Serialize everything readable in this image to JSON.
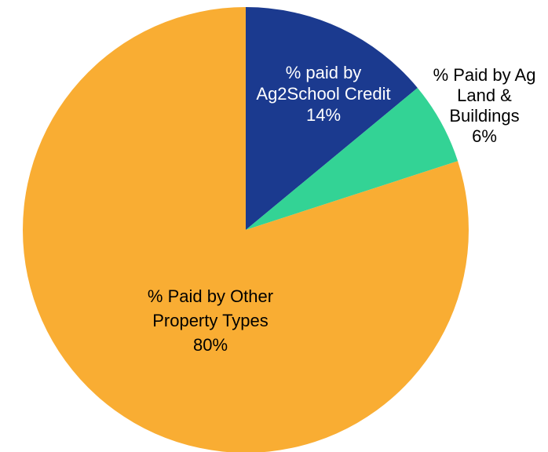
{
  "chart_data": {
    "type": "pie",
    "title": "",
    "slices": [
      {
        "label_lines": [
          "% paid by",
          "Ag2School Credit"
        ],
        "value": 14,
        "value_label": "14%",
        "color": "#1b3a8f",
        "label_color": "#ffffff"
      },
      {
        "label_lines": [
          "% Paid by Ag",
          "Land &",
          "Buildings"
        ],
        "value": 6,
        "value_label": "6%",
        "color": "#33d395",
        "label_color": "#000000"
      },
      {
        "label_lines": [
          "% Paid by Other",
          "Property Types"
        ],
        "value": 80,
        "value_label": "80%",
        "color": "#f9ad33",
        "label_color": "#000000"
      }
    ],
    "start_angle_deg": 0,
    "direction": "clockwise",
    "legend": "none"
  }
}
